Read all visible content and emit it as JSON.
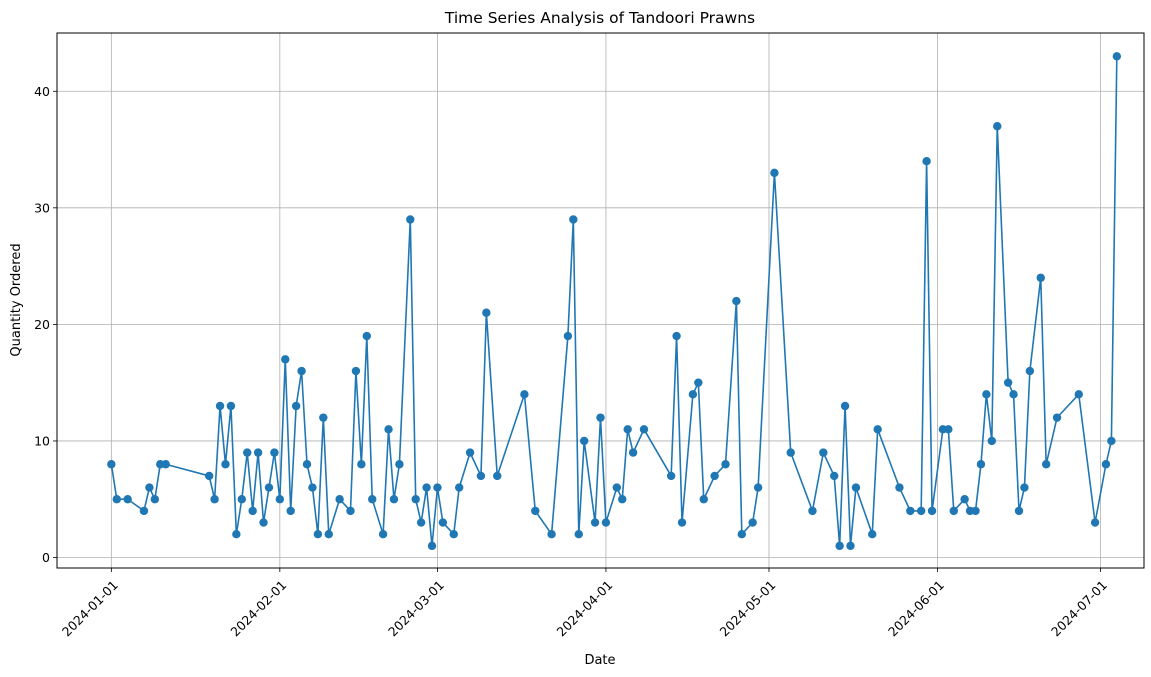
{
  "chart_data": {
    "type": "line",
    "title": "Time Series Analysis of Tandoori Prawns",
    "xlabel": "Date",
    "ylabel": "Quantity Ordered",
    "x_axis_type": "date",
    "xlim": [
      "2023-12-22",
      "2024-07-09"
    ],
    "ylim": [
      -0.9,
      45
    ],
    "x_ticks": [
      "2024-01-01",
      "2024-02-01",
      "2024-03-01",
      "2024-04-01",
      "2024-05-01",
      "2024-06-01",
      "2024-07-01"
    ],
    "y_ticks": [
      0,
      10,
      20,
      30,
      40
    ],
    "grid": true,
    "marker": "circle",
    "line_color": "#1f77b4",
    "series": [
      {
        "points": [
          [
            "2024-01-01",
            8
          ],
          [
            "2024-01-02",
            5
          ],
          [
            "2024-01-04",
            5
          ],
          [
            "2024-01-07",
            4
          ],
          [
            "2024-01-08",
            6
          ],
          [
            "2024-01-09",
            5
          ],
          [
            "2024-01-10",
            8
          ],
          [
            "2024-01-11",
            8
          ],
          [
            "2024-01-19",
            7
          ],
          [
            "2024-01-20",
            5
          ],
          [
            "2024-01-21",
            13
          ],
          [
            "2024-01-22",
            8
          ],
          [
            "2024-01-23",
            13
          ],
          [
            "2024-01-24",
            2
          ],
          [
            "2024-01-25",
            5
          ],
          [
            "2024-01-26",
            9
          ],
          [
            "2024-01-27",
            4
          ],
          [
            "2024-01-28",
            9
          ],
          [
            "2024-01-29",
            3
          ],
          [
            "2024-01-30",
            6
          ],
          [
            "2024-01-31",
            9
          ],
          [
            "2024-02-01",
            5
          ],
          [
            "2024-02-02",
            17
          ],
          [
            "2024-02-03",
            4
          ],
          [
            "2024-02-04",
            13
          ],
          [
            "2024-02-05",
            16
          ],
          [
            "2024-02-06",
            8
          ],
          [
            "2024-02-07",
            6
          ],
          [
            "2024-02-08",
            2
          ],
          [
            "2024-02-09",
            12
          ],
          [
            "2024-02-10",
            2
          ],
          [
            "2024-02-12",
            5
          ],
          [
            "2024-02-14",
            4
          ],
          [
            "2024-02-15",
            16
          ],
          [
            "2024-02-16",
            8
          ],
          [
            "2024-02-17",
            19
          ],
          [
            "2024-02-18",
            5
          ],
          [
            "2024-02-20",
            2
          ],
          [
            "2024-02-21",
            11
          ],
          [
            "2024-02-22",
            5
          ],
          [
            "2024-02-23",
            8
          ],
          [
            "2024-02-25",
            29
          ],
          [
            "2024-02-26",
            5
          ],
          [
            "2024-02-27",
            3
          ],
          [
            "2024-02-28",
            6
          ],
          [
            "2024-02-29",
            1
          ],
          [
            "2024-03-01",
            6
          ],
          [
            "2024-03-02",
            3
          ],
          [
            "2024-03-04",
            2
          ],
          [
            "2024-03-05",
            6
          ],
          [
            "2024-03-07",
            9
          ],
          [
            "2024-03-09",
            7
          ],
          [
            "2024-03-10",
            21
          ],
          [
            "2024-03-12",
            7
          ],
          [
            "2024-03-17",
            14
          ],
          [
            "2024-03-19",
            4
          ],
          [
            "2024-03-22",
            2
          ],
          [
            "2024-03-25",
            19
          ],
          [
            "2024-03-26",
            29
          ],
          [
            "2024-03-27",
            2
          ],
          [
            "2024-03-28",
            10
          ],
          [
            "2024-03-30",
            3
          ],
          [
            "2024-03-31",
            12
          ],
          [
            "2024-04-01",
            3
          ],
          [
            "2024-04-03",
            6
          ],
          [
            "2024-04-04",
            5
          ],
          [
            "2024-04-05",
            11
          ],
          [
            "2024-04-06",
            9
          ],
          [
            "2024-04-08",
            11
          ],
          [
            "2024-04-13",
            7
          ],
          [
            "2024-04-14",
            19
          ],
          [
            "2024-04-15",
            3
          ],
          [
            "2024-04-17",
            14
          ],
          [
            "2024-04-18",
            15
          ],
          [
            "2024-04-19",
            5
          ],
          [
            "2024-04-21",
            7
          ],
          [
            "2024-04-23",
            8
          ],
          [
            "2024-04-25",
            22
          ],
          [
            "2024-04-26",
            2
          ],
          [
            "2024-04-28",
            3
          ],
          [
            "2024-04-29",
            6
          ],
          [
            "2024-05-02",
            33
          ],
          [
            "2024-05-05",
            9
          ],
          [
            "2024-05-09",
            4
          ],
          [
            "2024-05-11",
            9
          ],
          [
            "2024-05-13",
            7
          ],
          [
            "2024-05-14",
            1
          ],
          [
            "2024-05-15",
            13
          ],
          [
            "2024-05-16",
            1
          ],
          [
            "2024-05-17",
            6
          ],
          [
            "2024-05-20",
            2
          ],
          [
            "2024-05-21",
            11
          ],
          [
            "2024-05-25",
            6
          ],
          [
            "2024-05-27",
            4
          ],
          [
            "2024-05-29",
            4
          ],
          [
            "2024-05-30",
            34
          ],
          [
            "2024-05-31",
            4
          ],
          [
            "2024-06-02",
            11
          ],
          [
            "2024-06-03",
            11
          ],
          [
            "2024-06-04",
            4
          ],
          [
            "2024-06-06",
            5
          ],
          [
            "2024-06-07",
            4
          ],
          [
            "2024-06-08",
            4
          ],
          [
            "2024-06-09",
            8
          ],
          [
            "2024-06-10",
            14
          ],
          [
            "2024-06-11",
            10
          ],
          [
            "2024-06-12",
            37
          ],
          [
            "2024-06-14",
            15
          ],
          [
            "2024-06-15",
            14
          ],
          [
            "2024-06-16",
            4
          ],
          [
            "2024-06-17",
            6
          ],
          [
            "2024-06-18",
            16
          ],
          [
            "2024-06-20",
            24
          ],
          [
            "2024-06-21",
            8
          ],
          [
            "2024-06-23",
            12
          ],
          [
            "2024-06-27",
            14
          ],
          [
            "2024-06-30",
            3
          ],
          [
            "2024-07-02",
            8
          ],
          [
            "2024-07-03",
            10
          ],
          [
            "2024-07-04",
            43
          ]
        ]
      }
    ]
  }
}
